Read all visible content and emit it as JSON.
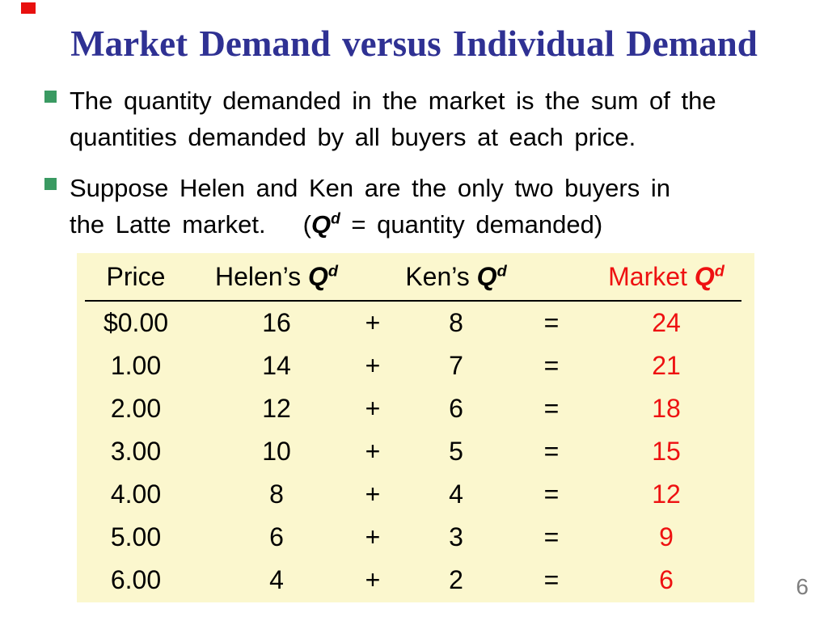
{
  "slide": {
    "title": "Market Demand versus Individual Demand",
    "page_number": "6",
    "bullets": [
      {
        "lines": [
          "The quantity demanded in the market is the sum of the",
          "quantities demanded by all buyers at each price."
        ]
      },
      {
        "lines": [
          "Suppose Helen and Ken are the only two buyers in"
        ],
        "line2_text": "the Latte market.",
        "paren_open": "(",
        "paren_rest": " = quantity demanded)"
      }
    ]
  },
  "symbols": {
    "q": "Q",
    "d": "d"
  },
  "table": {
    "headers": {
      "price": "Price",
      "helen_prefix": "Helen’s ",
      "ken_prefix": "Ken’s ",
      "market_prefix": "Market "
    },
    "operators": {
      "plus": "+",
      "equals": "="
    },
    "rows": [
      {
        "price": "$0.00",
        "helen": "16",
        "ken": "8",
        "market": "24"
      },
      {
        "price": "1.00",
        "helen": "14",
        "ken": "7",
        "market": "21"
      },
      {
        "price": "2.00",
        "helen": "12",
        "ken": "6",
        "market": "18"
      },
      {
        "price": "3.00",
        "helen": "10",
        "ken": "5",
        "market": "15"
      },
      {
        "price": "4.00",
        "helen": "8",
        "ken": "4",
        "market": "12"
      },
      {
        "price": "5.00",
        "helen": "6",
        "ken": "3",
        "market": "9"
      },
      {
        "price": "6.00",
        "helen": "4",
        "ken": "2",
        "market": "6"
      }
    ]
  },
  "colors": {
    "title_blue": "#2F3193",
    "bullet_green": "#3A9A62",
    "market_red": "#EE1111",
    "table_background": "#FBF7CE",
    "page_number_gray": "#7F7F7F",
    "text_black": "#000000",
    "corner_red": "#E8100F"
  }
}
